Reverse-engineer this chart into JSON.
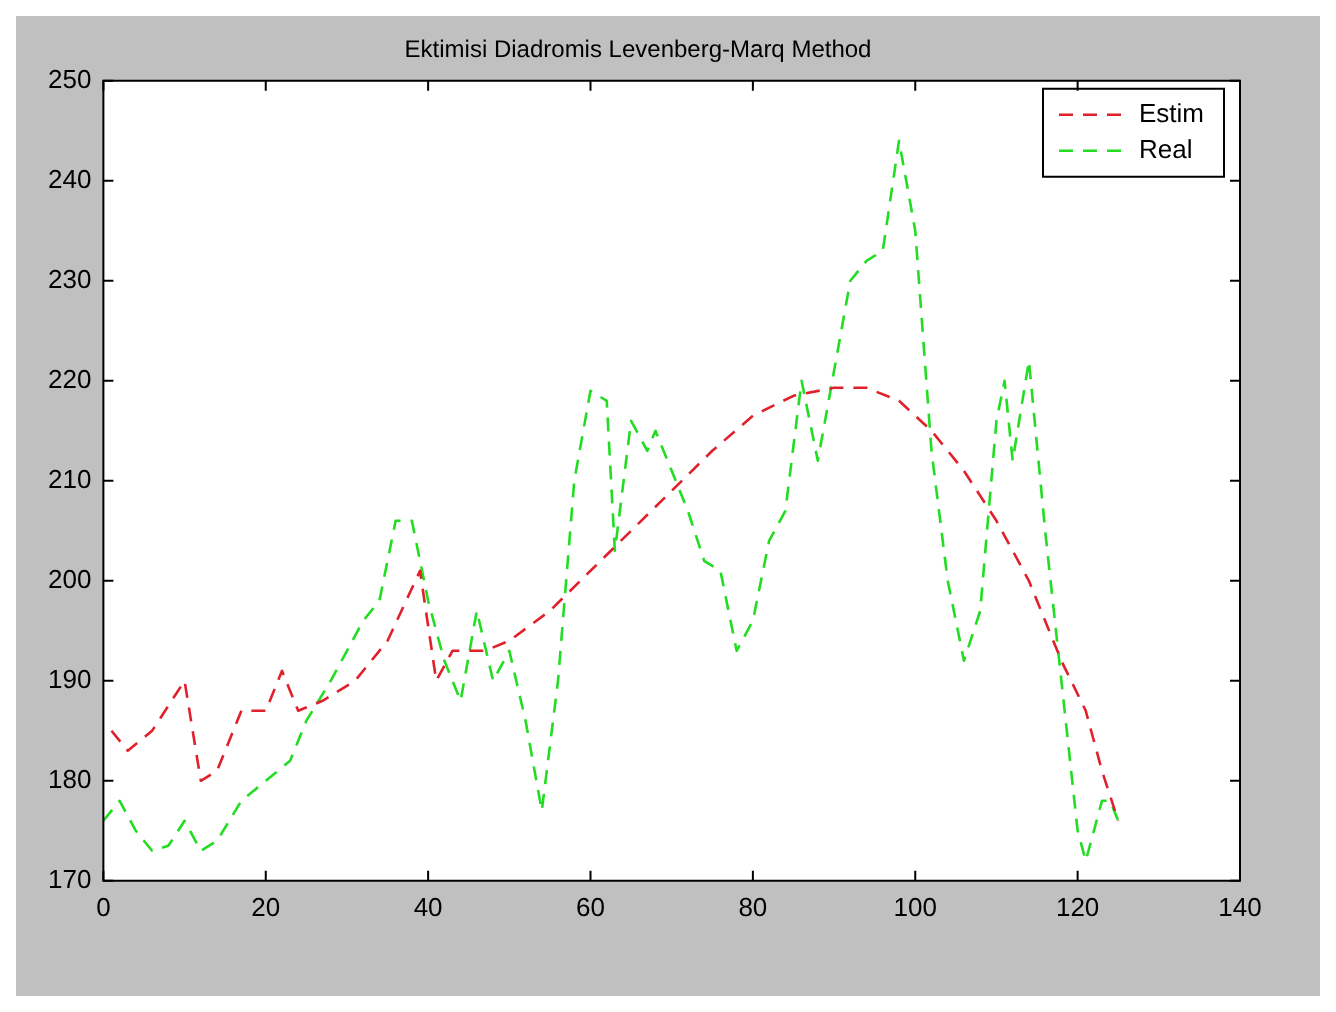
{
  "chart_data": {
    "type": "line",
    "title": "Ektimisi Diadromis Levenberg-Marq Method",
    "xlim": [
      0,
      140
    ],
    "xticks": [
      0,
      20,
      40,
      60,
      80,
      100,
      120,
      140
    ],
    "ylim": [
      170,
      250
    ],
    "yticks": [
      170,
      180,
      190,
      200,
      210,
      220,
      230,
      240,
      250
    ],
    "grid": false,
    "legend": "top right",
    "marker": "none",
    "series": [
      {
        "name": "Estim",
        "color": "#e0202a",
        "line_style": "dashed",
        "x": [
          1,
          3,
          6,
          10,
          12,
          14,
          17,
          20,
          22,
          24,
          27,
          31,
          35,
          39,
          41,
          43,
          47,
          50,
          55,
          60,
          65,
          70,
          75,
          80,
          85,
          90,
          94,
          98,
          102,
          106,
          110,
          114,
          118,
          121,
          123,
          125
        ],
        "values": [
          185,
          183,
          185,
          190,
          180,
          181,
          187,
          187,
          191,
          187,
          188,
          190,
          194,
          201,
          190,
          193,
          193,
          194,
          197,
          201,
          205,
          209,
          213,
          216.5,
          218.5,
          219.3,
          219.3,
          218,
          215,
          211,
          206,
          200,
          192,
          187,
          181,
          176
        ]
      },
      {
        "name": "Real",
        "color": "#22dd22",
        "line_style": "dashed",
        "x": [
          0,
          2,
          4,
          6,
          8,
          10,
          12,
          14,
          17,
          20,
          23,
          25,
          28,
          30,
          32,
          34,
          36,
          38,
          40,
          42,
          44,
          46,
          48,
          50,
          52,
          54,
          56,
          58,
          60,
          62,
          63,
          65,
          67,
          68,
          70,
          72,
          74,
          76,
          78,
          80,
          82,
          84,
          86,
          88,
          90,
          92,
          94,
          96,
          98,
          100,
          102,
          104,
          106,
          108,
          110,
          111,
          112,
          114,
          116,
          118,
          120,
          121,
          123,
          124,
          125
        ],
        "values": [
          176,
          178,
          175,
          173,
          173.5,
          176,
          173,
          174,
          178,
          180,
          182,
          186,
          190,
          193,
          196,
          198,
          206,
          206,
          198,
          192,
          188,
          197,
          190,
          193,
          186,
          177,
          190,
          210,
          219,
          218,
          203,
          216,
          213,
          215,
          211,
          207,
          202,
          201,
          193,
          196,
          204,
          207,
          220,
          212,
          221,
          230,
          232,
          233,
          244,
          235,
          213,
          200,
          192,
          197,
          216,
          220,
          212,
          222,
          205,
          190,
          175,
          172,
          178,
          178,
          176
        ]
      }
    ]
  }
}
